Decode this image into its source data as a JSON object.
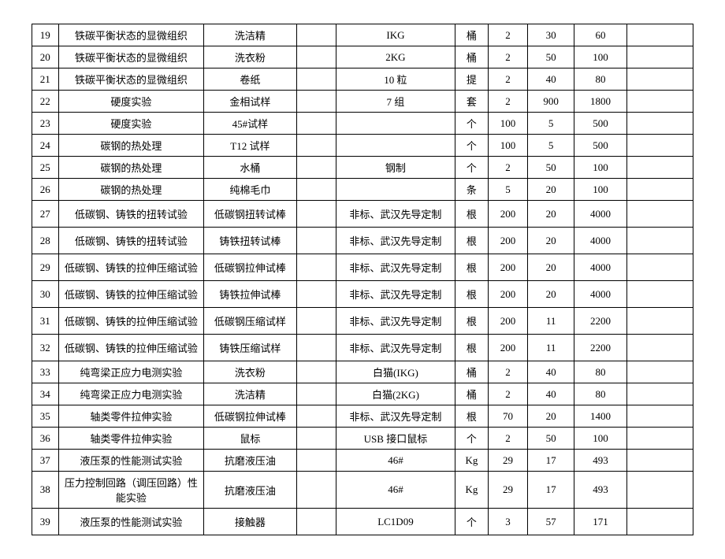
{
  "rows": [
    {
      "idx": "19",
      "exp": "铁碳平衡状态的显微组织",
      "item": "洗洁精",
      "blank1": "",
      "spec": "IKG",
      "unit": "桶",
      "qty": "2",
      "price": "30",
      "total": "60",
      "blank2": "",
      "tall": false
    },
    {
      "idx": "20",
      "exp": "铁碳平衡状态的显微组织",
      "item": "洗衣粉",
      "blank1": "",
      "spec": "2KG",
      "unit": "桶",
      "qty": "2",
      "price": "50",
      "total": "100",
      "blank2": "",
      "tall": false
    },
    {
      "idx": "21",
      "exp": "铁碳平衡状态的显微组织",
      "item": "卷纸",
      "blank1": "",
      "spec": "10 粒",
      "unit": "提",
      "qty": "2",
      "price": "40",
      "total": "80",
      "blank2": "",
      "tall": false
    },
    {
      "idx": "22",
      "exp": "硬度实验",
      "item": "金相试样",
      "blank1": "",
      "spec": "7 组",
      "unit": "套",
      "qty": "2",
      "price": "900",
      "total": "1800",
      "blank2": "",
      "tall": false
    },
    {
      "idx": "23",
      "exp": "硬度实验",
      "item": "45#试样",
      "blank1": "",
      "spec": "",
      "unit": "个",
      "qty": "100",
      "price": "5",
      "total": "500",
      "blank2": "",
      "tall": false
    },
    {
      "idx": "24",
      "exp": "碳钢的热处理",
      "item": "T12 试样",
      "blank1": "",
      "spec": "",
      "unit": "个",
      "qty": "100",
      "price": "5",
      "total": "500",
      "blank2": "",
      "tall": false
    },
    {
      "idx": "25",
      "exp": "碳钢的热处理",
      "item": "水桶",
      "blank1": "",
      "spec": "钢制",
      "unit": "个",
      "qty": "2",
      "price": "50",
      "total": "100",
      "blank2": "",
      "tall": false
    },
    {
      "idx": "26",
      "exp": "碳钢的热处理",
      "item": "纯棉毛巾",
      "blank1": "",
      "spec": "",
      "unit": "条",
      "qty": "5",
      "price": "20",
      "total": "100",
      "blank2": "",
      "tall": false
    },
    {
      "idx": "27",
      "exp": "低碳钢、铸铁的扭转试验",
      "item": "低碳钢扭转试棒",
      "blank1": "",
      "spec": "非标、武汉先导定制",
      "unit": "根",
      "qty": "200",
      "price": "20",
      "total": "4000",
      "blank2": "",
      "tall": true
    },
    {
      "idx": "28",
      "exp": "低碳钢、铸铁的扭转试验",
      "item": "铸铁扭转试棒",
      "blank1": "",
      "spec": "非标、武汉先导定制",
      "unit": "根",
      "qty": "200",
      "price": "20",
      "total": "4000",
      "blank2": "",
      "tall": true
    },
    {
      "idx": "29",
      "exp": "低碳钢、铸铁的拉伸压缩试验",
      "item": "低碳钢拉伸试棒",
      "blank1": "",
      "spec": "非标、武汉先导定制",
      "unit": "根",
      "qty": "200",
      "price": "20",
      "total": "4000",
      "blank2": "",
      "tall": true
    },
    {
      "idx": "30",
      "exp": "低碳钢、铸铁的拉伸压缩试验",
      "item": "铸铁拉伸试棒",
      "blank1": "",
      "spec": "非标、武汉先导定制",
      "unit": "根",
      "qty": "200",
      "price": "20",
      "total": "4000",
      "blank2": "",
      "tall": true
    },
    {
      "idx": "31",
      "exp": "低碳钢、铸铁的拉伸压缩试验",
      "item": "低碳钢压缩试样",
      "blank1": "",
      "spec": "非标、武汉先导定制",
      "unit": "根",
      "qty": "200",
      "price": "11",
      "total": "2200",
      "blank2": "",
      "tall": true
    },
    {
      "idx": "32",
      "exp": "低碳钢、铸铁的拉伸压缩试验",
      "item": "铸铁压缩试样",
      "blank1": "",
      "spec": "非标、武汉先导定制",
      "unit": "根",
      "qty": "200",
      "price": "11",
      "total": "2200",
      "blank2": "",
      "tall": true
    },
    {
      "idx": "33",
      "exp": "纯弯梁正应力电测实验",
      "item": "洗衣粉",
      "blank1": "",
      "spec": "白猫(IKG)",
      "unit": "桶",
      "qty": "2",
      "price": "40",
      "total": "80",
      "blank2": "",
      "tall": false
    },
    {
      "idx": "34",
      "exp": "纯弯梁正应力电测实验",
      "item": "洗洁精",
      "blank1": "",
      "spec": "白猫(2KG)",
      "unit": "桶",
      "qty": "2",
      "price": "40",
      "total": "80",
      "blank2": "",
      "tall": false
    },
    {
      "idx": "35",
      "exp": "轴类零件拉伸实验",
      "item": "低碳钢拉伸试棒",
      "blank1": "",
      "spec": "非标、武汉先导定制",
      "unit": "根",
      "qty": "70",
      "price": "20",
      "total": "1400",
      "blank2": "",
      "tall": false
    },
    {
      "idx": "36",
      "exp": "轴类零件拉伸实验",
      "item": "鼠标",
      "blank1": "",
      "spec": "USB 接口鼠标",
      "unit": "个",
      "qty": "2",
      "price": "50",
      "total": "100",
      "blank2": "",
      "tall": false
    },
    {
      "idx": "37",
      "exp": "液压泵的性能测试实验",
      "item": "抗磨液压油",
      "blank1": "",
      "spec": "46#",
      "unit": "Kg",
      "qty": "29",
      "price": "17",
      "total": "493",
      "blank2": "",
      "tall": false
    },
    {
      "idx": "38",
      "exp": "压力控制回路（调压回路）性能实验",
      "item": "抗磨液压油",
      "blank1": "",
      "spec": "46#",
      "unit": "Kg",
      "qty": "29",
      "price": "17",
      "total": "493",
      "blank2": "",
      "tall": true
    },
    {
      "idx": "39",
      "exp": "液压泵的性能测试实验",
      "item": "接触器",
      "blank1": "",
      "spec": "LC1D09",
      "unit": "个",
      "qty": "3",
      "price": "57",
      "total": "171",
      "blank2": "",
      "tall": true
    }
  ]
}
